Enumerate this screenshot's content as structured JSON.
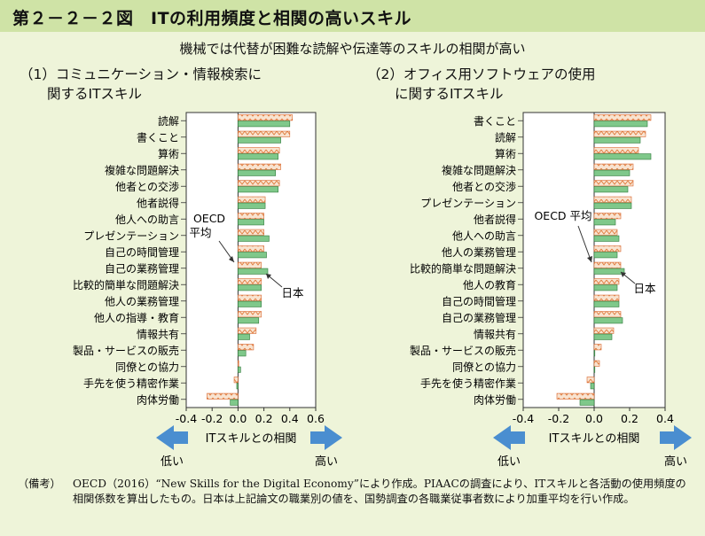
{
  "figure_title": "第２－２－２図　ITの利用頻度と相関の高いスキル",
  "subtitle": "機械では代替が困難な読解や伝達等のスキルの相関が高い",
  "note": {
    "label": "（備考）",
    "text": "OECD（2016）“New Skills for the Digital Economy”により作成。PIAACの調査により、ITスキルと各活動の使用頻度の相関係数を算出したもの。日本は上記論文の職業別の値を、国勢調査の各職業従事者数により加重平均を行い作成。"
  },
  "colors": {
    "japan": "#7fc88a",
    "japan_stroke": "#2f7a3a",
    "oecd": "#f6d9c2",
    "oecd_stroke": "#d9642a",
    "arrow": "#4a8ed0"
  },
  "chart_data": [
    {
      "type": "bar",
      "orientation": "horizontal",
      "panel_title": "（1）コミュニケーション・情報検索に\n　　関するITスキル",
      "categories": [
        "読解",
        "書くこと",
        "算術",
        "複雑な問題解決",
        "他者との交渉",
        "他者説得",
        "他人への助言",
        "プレゼンテーション",
        "自己の時間管理",
        "自己の業務管理",
        "比較的簡単な問題解決",
        "他人の業務管理",
        "他人の指導・教育",
        "情報共有",
        "製品・サービスの販売",
        "同僚との協力",
        "手先を使う精密作業",
        "肉体労働"
      ],
      "series": [
        {
          "name": "OECD平均",
          "values": [
            0.42,
            0.4,
            0.32,
            0.33,
            0.32,
            0.21,
            0.2,
            0.2,
            0.2,
            0.18,
            0.18,
            0.18,
            0.18,
            0.14,
            0.12,
            0.0,
            -0.03,
            -0.24
          ]
        },
        {
          "name": "日本",
          "values": [
            0.4,
            0.33,
            0.31,
            0.29,
            0.31,
            0.21,
            0.2,
            0.24,
            0.22,
            0.23,
            0.18,
            0.18,
            0.16,
            0.09,
            0.06,
            0.02,
            -0.01,
            -0.06
          ]
        }
      ],
      "xlim": [
        -0.4,
        0.6
      ],
      "xticks": [
        "-0.4",
        "-0.2",
        "0.0",
        "0.2",
        "0.4",
        "0.6"
      ],
      "xlabel": "ITスキルとの相関",
      "low_label": "低い",
      "high_label": "高い",
      "annot_oecd": [
        "OECD",
        "平均"
      ],
      "annot_japan": "日本"
    },
    {
      "type": "bar",
      "orientation": "horizontal",
      "panel_title": "（2）オフィス用ソフトウェアの使用\n　　に関するITスキル",
      "categories": [
        "書くこと",
        "読解",
        "算術",
        "複雑な問題解決",
        "他者との交渉",
        "プレゼンテーション",
        "他者説得",
        "他人への助言",
        "他人の業務管理",
        "比較的簡単な問題解決",
        "他人の教育",
        "自己の時間管理",
        "自己の業務管理",
        "情報共有",
        "製品・サービスの販売",
        "同僚との協力",
        "手先を使う精密作業",
        "肉体労働"
      ],
      "series": [
        {
          "name": "OECD平均",
          "values": [
            0.32,
            0.29,
            0.25,
            0.22,
            0.22,
            0.21,
            0.15,
            0.13,
            0.15,
            0.15,
            0.14,
            0.14,
            0.15,
            0.11,
            0.04,
            0.03,
            -0.04,
            -0.21
          ]
        },
        {
          "name": "日本",
          "values": [
            0.3,
            0.26,
            0.32,
            0.2,
            0.19,
            0.21,
            0.12,
            0.14,
            0.13,
            0.17,
            0.13,
            0.14,
            0.16,
            0.1,
            0.0,
            0.0,
            -0.02,
            -0.08
          ]
        }
      ],
      "xlim": [
        -0.4,
        0.4
      ],
      "xticks": [
        "-0.4",
        "-0.2",
        "0.0",
        "0.2",
        "0.4"
      ],
      "xlabel": "ITスキルとの相関",
      "low_label": "低い",
      "high_label": "高い",
      "annot_oecd": "OECD 平均",
      "annot_japan": "日本"
    }
  ]
}
